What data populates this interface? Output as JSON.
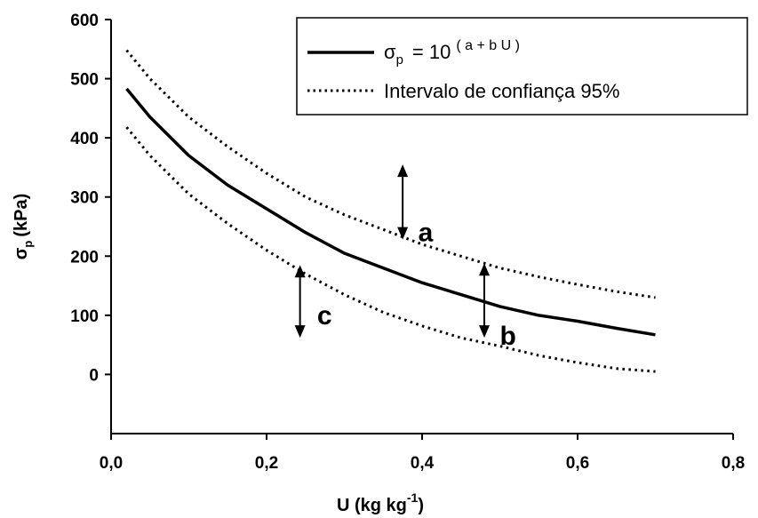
{
  "chart_data": {
    "type": "line",
    "xlim": [
      0.0,
      0.8
    ],
    "ylim": [
      -100,
      600
    ],
    "x_ticks": [
      "0,0",
      "0,2",
      "0,4",
      "0,6",
      "0,8"
    ],
    "y_ticks": [
      "600",
      "500",
      "400",
      "300",
      "200",
      "100",
      "0"
    ],
    "y_tick_values": [
      600,
      500,
      400,
      300,
      200,
      100,
      0
    ],
    "x_tick_values": [
      0.0,
      0.2,
      0.4,
      0.6,
      0.8
    ],
    "xlabel": {
      "main": "U (kg kg",
      "sup": "-1",
      "close": ")"
    },
    "ylabel": {
      "main": "σ",
      "sub": "p",
      "rest": "(kPa)"
    },
    "grid": false,
    "legend": {
      "position": "top-right",
      "entries": [
        {
          "style": "solid",
          "label_main": "σ",
          "label_sub": "p",
          "label_eq": "= 10",
          "label_sup": "( a + b  U )"
        },
        {
          "style": "dotted",
          "label": "Intervalo de confiança 95%"
        }
      ]
    },
    "series": [
      {
        "style": "solid",
        "x": [
          0.02,
          0.05,
          0.1,
          0.15,
          0.2,
          0.25,
          0.3,
          0.35,
          0.4,
          0.45,
          0.5,
          0.55,
          0.6,
          0.65,
          0.7
        ],
        "y": [
          483,
          435,
          370,
          320,
          280,
          240,
          205,
          180,
          155,
          135,
          115,
          100,
          90,
          78,
          67
        ]
      },
      {
        "style": "dotted",
        "x": [
          0.02,
          0.05,
          0.1,
          0.15,
          0.2,
          0.25,
          0.3,
          0.35,
          0.4,
          0.45,
          0.5,
          0.55,
          0.6,
          0.65,
          0.7
        ],
        "y": [
          548,
          500,
          435,
          385,
          340,
          300,
          270,
          245,
          220,
          200,
          180,
          165,
          152,
          140,
          130
        ]
      },
      {
        "style": "dotted",
        "x": [
          0.02,
          0.05,
          0.1,
          0.15,
          0.2,
          0.25,
          0.3,
          0.35,
          0.4,
          0.45,
          0.5,
          0.55,
          0.6,
          0.65,
          0.7
        ],
        "y": [
          418,
          370,
          305,
          255,
          210,
          170,
          135,
          105,
          82,
          62,
          48,
          32,
          20,
          10,
          5
        ]
      }
    ],
    "annotations": [
      {
        "label": "a",
        "x": 0.375,
        "y_from": 355,
        "y_to": 228,
        "label_x": 0.395,
        "label_y": 240
      },
      {
        "label": "b",
        "x": 0.48,
        "y_from": 188,
        "y_to": 62,
        "label_x": 0.5,
        "label_y": 65
      },
      {
        "label": "c",
        "x": 0.243,
        "y_from": 185,
        "y_to": 62,
        "label_x": 0.265,
        "label_y": 100
      }
    ]
  }
}
